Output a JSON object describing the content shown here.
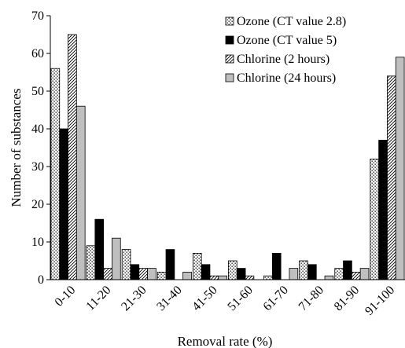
{
  "chart_data": {
    "type": "bar",
    "title": "",
    "xlabel": "Removal rate (%)",
    "ylabel": "Number of substances",
    "ylim": [
      0,
      70
    ],
    "yticks": [
      0,
      10,
      20,
      30,
      40,
      50,
      60,
      70
    ],
    "grid": false,
    "legend": "top-right",
    "categories": [
      "0-10",
      "11-20",
      "21-30",
      "31-40",
      "41-50",
      "51-60",
      "61-70",
      "71-80",
      "81-90",
      "91-100"
    ],
    "series": [
      {
        "name": "Ozone (CT value 2.8)",
        "pattern": "dots",
        "values": [
          56,
          9,
          8,
          2,
          7,
          5,
          1,
          5,
          3,
          32
        ]
      },
      {
        "name": "Ozone (CT value 5)",
        "pattern": "solid-black",
        "values": [
          40,
          16,
          4,
          8,
          4,
          3,
          7,
          4,
          5,
          37
        ]
      },
      {
        "name": "Chlorine (2 hours)",
        "pattern": "diagonal-hatch",
        "values": [
          65,
          3,
          3,
          0,
          1,
          1,
          0,
          0,
          2,
          54
        ]
      },
      {
        "name": "Chlorine (24 hours)",
        "pattern": "solid-gray",
        "values": [
          46,
          11,
          3,
          2,
          1,
          0,
          3,
          1,
          3,
          59
        ]
      }
    ],
    "colors": {
      "black": "#000000",
      "gray": "#bfbfbf",
      "axis": "#000000"
    }
  }
}
